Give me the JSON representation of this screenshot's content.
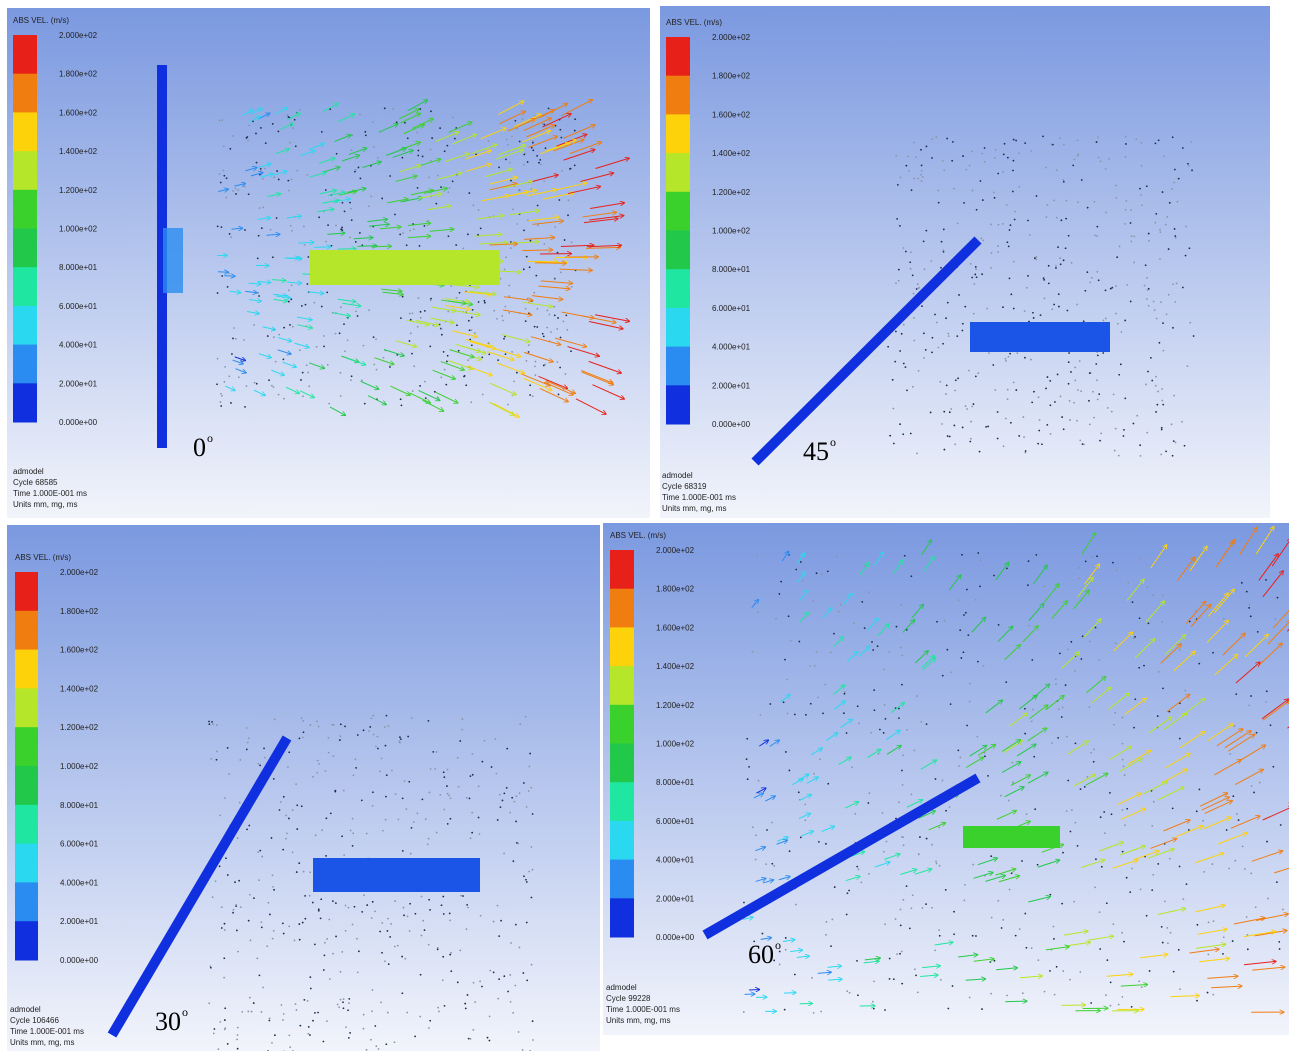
{
  "panels": [
    {
      "legend_title": "ABS VEL. (m/s)",
      "legend_labels": [
        "2.000e+02",
        "1.800e+02",
        "1.600e+02",
        "1.400e+02",
        "1.200e+02",
        "1.000e+02",
        "8.000e+01",
        "6.000e+01",
        "4.000e+01",
        "2.000e+01",
        "0.000e+00"
      ],
      "footer": [
        "admodel",
        "Cycle 68585",
        "Time 1.000E-001 ms",
        "Units mm, mg, ms"
      ],
      "angle": "0",
      "angle_sup": "o"
    },
    {
      "legend_title": "ABS VEL. (m/s)",
      "legend_labels": [
        "2.000e+02",
        "1.800e+02",
        "1.600e+02",
        "1.400e+02",
        "1.200e+02",
        "1.000e+02",
        "8.000e+01",
        "6.000e+01",
        "4.000e+01",
        "2.000e+01",
        "0.000e+00"
      ],
      "footer": [
        "admodel",
        "Cycle 68319",
        "Time 1.000E-001 ms",
        "Units mm, mg, ms"
      ],
      "angle": "45",
      "angle_sup": "o"
    },
    {
      "legend_title": "ABS VEL. (m/s)",
      "legend_labels": [
        "2.000e+02",
        "1.800e+02",
        "1.600e+02",
        "1.400e+02",
        "1.200e+02",
        "1.000e+02",
        "8.000e+01",
        "6.000e+01",
        "4.000e+01",
        "2.000e+01",
        "0.000e+00"
      ],
      "footer": [
        "admodel",
        "Cycle 106466",
        "Time 1.000E-001 ms",
        "Units mm, mg, ms"
      ],
      "angle": "30",
      "angle_sup": "o"
    },
    {
      "legend_title": "ABS VEL. (m/s)",
      "legend_labels": [
        "2.000e+02",
        "1.800e+02",
        "1.600e+02",
        "1.400e+02",
        "1.200e+02",
        "1.000e+02",
        "8.000e+01",
        "6.000e+01",
        "4.000e+01",
        "2.000e+01",
        "0.000e+00"
      ],
      "footer": [
        "admodel",
        "Cycle 99228",
        "Time 1.000E-001 ms",
        "Units mm, mg, ms"
      ],
      "angle": "60",
      "angle_sup": "o"
    }
  ]
}
